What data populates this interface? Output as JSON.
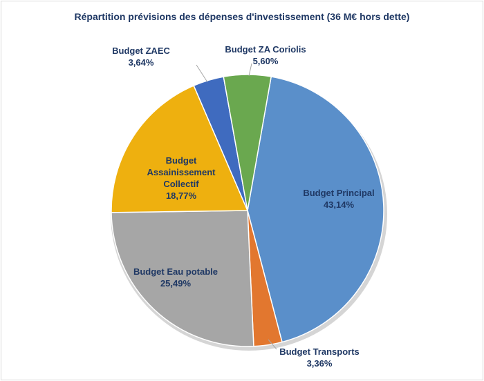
{
  "chart_data": {
    "type": "pie",
    "title": "Répartition prévisions des dépenses d'investissement (36 M€ hors dette)",
    "categories": [
      "Budget Principal",
      "Budget Transports",
      "Budget Eau potable",
      "Budget Assainissement Collectif",
      "Budget ZAEC",
      "Budget ZA Coriolis"
    ],
    "values": [
      43.14,
      3.36,
      25.49,
      18.77,
      3.64,
      5.6
    ],
    "value_labels": [
      "43,14%",
      "3,36%",
      "25,49%",
      "18,77%",
      "3,64%",
      "5,60%"
    ],
    "colors": [
      "#5a8fca",
      "#e2772f",
      "#a6a6a6",
      "#eeb00f",
      "#3f6bbf",
      "#6aa84f"
    ]
  }
}
